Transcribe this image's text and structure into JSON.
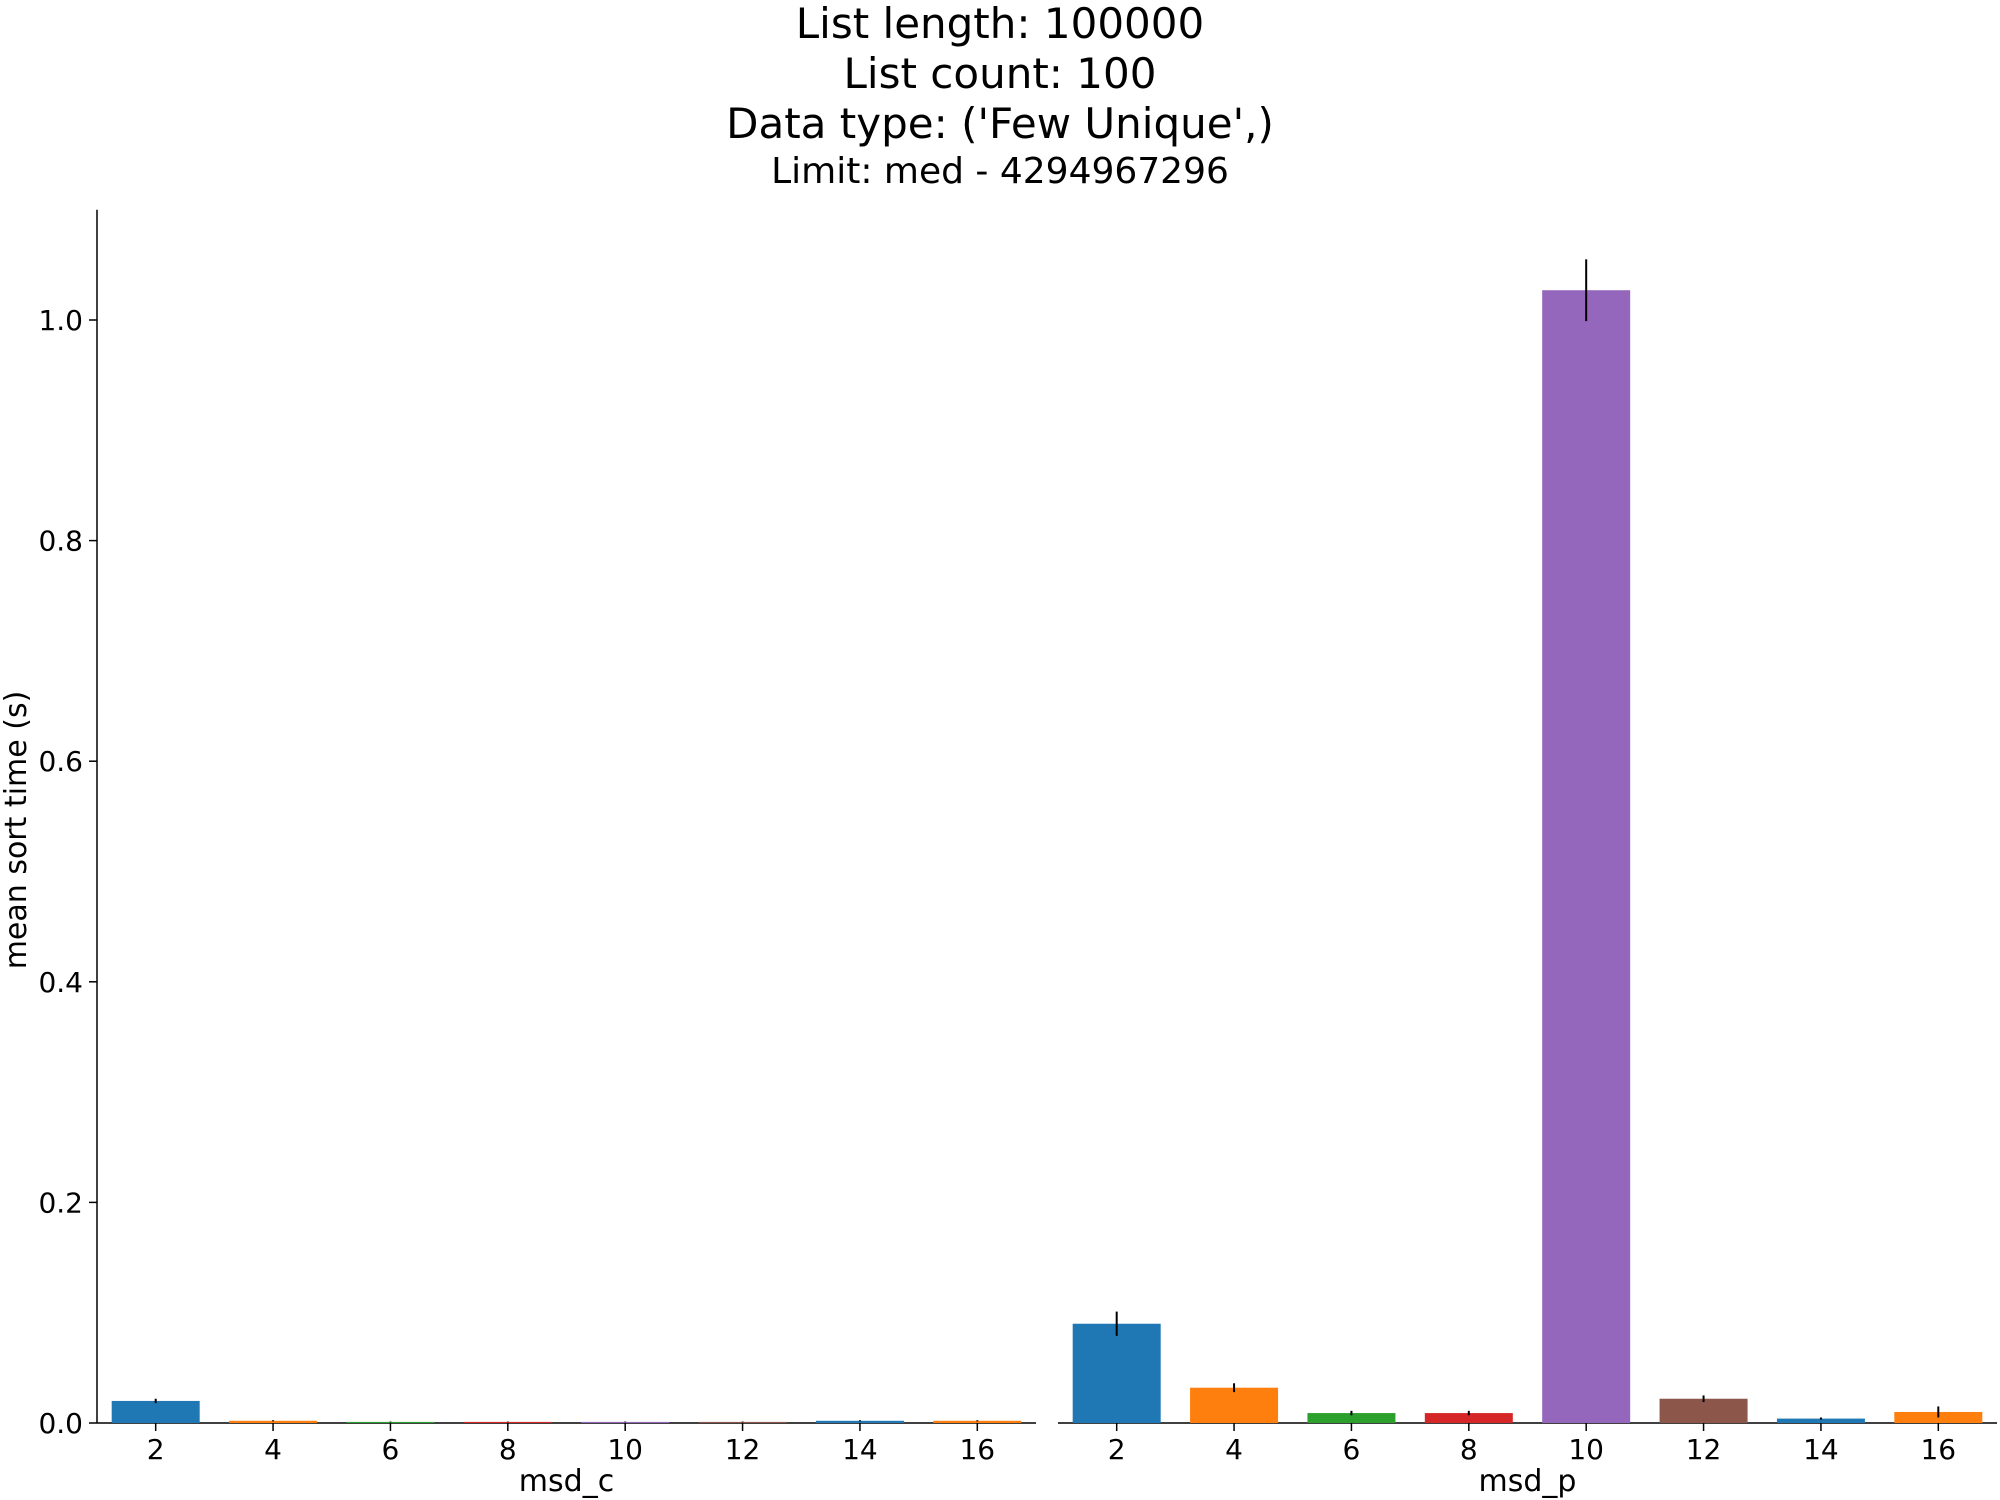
{
  "chart_data": {
    "type": "bar",
    "title": [
      "List length: 100000",
      "List count: 100",
      "Data type: ('Few Unique',)",
      "Limit: med - 4294967296"
    ],
    "ylabel": "mean sort time (s)",
    "ylim": [
      0,
      1.1
    ],
    "yticks": [
      "0.0",
      "0.2",
      "0.4",
      "0.6",
      "0.8",
      "1.0"
    ],
    "categories": [
      "2",
      "4",
      "6",
      "8",
      "10",
      "12",
      "14",
      "16"
    ],
    "colors": [
      "#1f77b4",
      "#ff7f0e",
      "#2ca02c",
      "#d62728",
      "#9467bd",
      "#8c564b",
      "#1f77b4",
      "#ff7f0e"
    ],
    "grid": false,
    "legend": "none",
    "panels": [
      {
        "xlabel": "msd_c",
        "values": [
          0.02,
          0.002,
          0.001,
          0.001,
          0.001,
          0.001,
          0.002,
          0.002
        ],
        "errors": [
          0.002,
          0.0005,
          0.0003,
          0.0003,
          0.0003,
          0.0003,
          0.0005,
          0.0005
        ]
      },
      {
        "xlabel": "msd_p",
        "values": [
          0.09,
          0.032,
          0.009,
          0.009,
          1.027,
          0.022,
          0.004,
          0.01
        ],
        "errors": [
          0.011,
          0.004,
          0.002,
          0.002,
          0.028,
          0.003,
          0.001,
          0.005
        ]
      }
    ]
  }
}
